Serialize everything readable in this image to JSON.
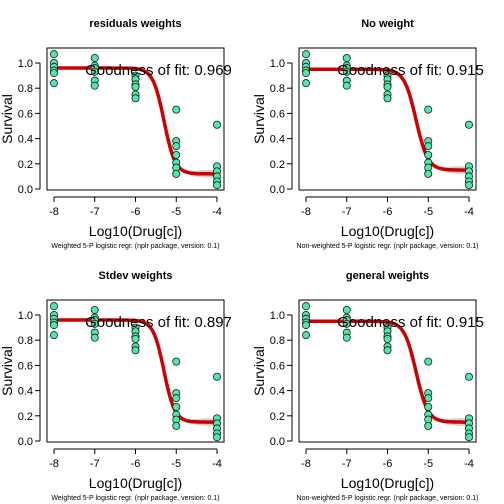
{
  "colors": {
    "point_fill": "#4ee8a8",
    "point_stroke": "#1a1a1a",
    "curve": "#cc0000",
    "band": "#cccccc"
  },
  "chart_data": [
    {
      "type": "scatter",
      "title": "residuals weights",
      "xlabel": "Log10(Drug[c])",
      "ylabel": "Survival",
      "xlim": [
        -8,
        -4
      ],
      "ylim": [
        0,
        1.05
      ],
      "xticks": [
        "-8",
        "-7",
        "-6",
        "-5",
        "-4"
      ],
      "yticks": [
        "0.0",
        "0.2",
        "0.4",
        "0.6",
        "0.8",
        "1.0"
      ],
      "annotation": "Goodness of fit: 0.969",
      "footnote": "Weighted 5-P logistic regr. (nplr package, version: 0.1)",
      "points": [
        [
          -8,
          1.07
        ],
        [
          -8,
          1.0
        ],
        [
          -8,
          0.97
        ],
        [
          -8,
          0.94
        ],
        [
          -8,
          0.92
        ],
        [
          -8,
          0.84
        ],
        [
          -7,
          1.04
        ],
        [
          -7,
          0.98
        ],
        [
          -7,
          0.96
        ],
        [
          -7,
          0.93
        ],
        [
          -7,
          0.86
        ],
        [
          -7,
          0.82
        ],
        [
          -6,
          0.9
        ],
        [
          -6,
          0.87
        ],
        [
          -6,
          0.83
        ],
        [
          -6,
          0.81
        ],
        [
          -6,
          0.75
        ],
        [
          -6,
          0.72
        ],
        [
          -5,
          0.63
        ],
        [
          -5,
          0.38
        ],
        [
          -5,
          0.34
        ],
        [
          -5,
          0.27
        ],
        [
          -5,
          0.21
        ],
        [
          -5,
          0.17
        ],
        [
          -5,
          0.12
        ],
        [
          -4,
          0.51
        ],
        [
          -4,
          0.18
        ],
        [
          -4,
          0.14
        ],
        [
          -4,
          0.1
        ],
        [
          -4,
          0.06
        ],
        [
          -4,
          0.03
        ]
      ],
      "fit": {
        "bottom": 0.12,
        "top": 0.96,
        "xmid": -5.3,
        "scal": 3.2,
        "s": 1.0
      }
    },
    {
      "type": "scatter",
      "title": "No weight",
      "xlabel": "Log10(Drug[c])",
      "ylabel": "Survival",
      "xlim": [
        -8,
        -4
      ],
      "ylim": [
        0,
        1.05
      ],
      "xticks": [
        "-8",
        "-7",
        "-6",
        "-5",
        "-4"
      ],
      "yticks": [
        "0.0",
        "0.2",
        "0.4",
        "0.6",
        "0.8",
        "1.0"
      ],
      "annotation": "Goodness of fit: 0.915",
      "footnote": "Non-weighted 5-P logistic regr. (nplr package, version: 0.1)",
      "points": [
        [
          -8,
          1.07
        ],
        [
          -8,
          1.0
        ],
        [
          -8,
          0.97
        ],
        [
          -8,
          0.94
        ],
        [
          -8,
          0.92
        ],
        [
          -8,
          0.84
        ],
        [
          -7,
          1.04
        ],
        [
          -7,
          0.98
        ],
        [
          -7,
          0.96
        ],
        [
          -7,
          0.93
        ],
        [
          -7,
          0.86
        ],
        [
          -7,
          0.82
        ],
        [
          -6,
          0.9
        ],
        [
          -6,
          0.87
        ],
        [
          -6,
          0.83
        ],
        [
          -6,
          0.81
        ],
        [
          -6,
          0.75
        ],
        [
          -6,
          0.72
        ],
        [
          -5,
          0.63
        ],
        [
          -5,
          0.38
        ],
        [
          -5,
          0.34
        ],
        [
          -5,
          0.27
        ],
        [
          -5,
          0.21
        ],
        [
          -5,
          0.17
        ],
        [
          -5,
          0.12
        ],
        [
          -4,
          0.51
        ],
        [
          -4,
          0.18
        ],
        [
          -4,
          0.14
        ],
        [
          -4,
          0.1
        ],
        [
          -4,
          0.06
        ],
        [
          -4,
          0.03
        ]
      ],
      "fit": {
        "bottom": 0.15,
        "top": 0.95,
        "xmid": -5.3,
        "scal": 3.0,
        "s": 1.0
      }
    },
    {
      "type": "scatter",
      "title": "Stdev weights",
      "xlabel": "Log10(Drug[c])",
      "ylabel": "Survival",
      "xlim": [
        -8,
        -4
      ],
      "ylim": [
        0,
        1.05
      ],
      "xticks": [
        "-8",
        "-7",
        "-6",
        "-5",
        "-4"
      ],
      "yticks": [
        "0.0",
        "0.2",
        "0.4",
        "0.6",
        "0.8",
        "1.0"
      ],
      "annotation": "Goodness of fit: 0.897",
      "footnote": "Weighted 5-P logistic regr. (nplr package, version: 0.1)",
      "points": [
        [
          -8,
          1.07
        ],
        [
          -8,
          1.0
        ],
        [
          -8,
          0.97
        ],
        [
          -8,
          0.94
        ],
        [
          -8,
          0.92
        ],
        [
          -8,
          0.84
        ],
        [
          -7,
          1.04
        ],
        [
          -7,
          0.98
        ],
        [
          -7,
          0.96
        ],
        [
          -7,
          0.93
        ],
        [
          -7,
          0.86
        ],
        [
          -7,
          0.82
        ],
        [
          -6,
          0.9
        ],
        [
          -6,
          0.87
        ],
        [
          -6,
          0.83
        ],
        [
          -6,
          0.81
        ],
        [
          -6,
          0.75
        ],
        [
          -6,
          0.72
        ],
        [
          -5,
          0.63
        ],
        [
          -5,
          0.38
        ],
        [
          -5,
          0.34
        ],
        [
          -5,
          0.27
        ],
        [
          -5,
          0.21
        ],
        [
          -5,
          0.17
        ],
        [
          -5,
          0.12
        ],
        [
          -4,
          0.51
        ],
        [
          -4,
          0.18
        ],
        [
          -4,
          0.14
        ],
        [
          -4,
          0.1
        ],
        [
          -4,
          0.06
        ],
        [
          -4,
          0.03
        ]
      ],
      "fit": {
        "bottom": 0.15,
        "top": 0.96,
        "xmid": -5.3,
        "scal": 3.3,
        "s": 1.0
      }
    },
    {
      "type": "scatter",
      "title": "general weights",
      "xlabel": "Log10(Drug[c])",
      "ylabel": "Survival",
      "xlim": [
        -8,
        -4
      ],
      "ylim": [
        0,
        1.05
      ],
      "xticks": [
        "-8",
        "-7",
        "-6",
        "-5",
        "-4"
      ],
      "yticks": [
        "0.0",
        "0.2",
        "0.4",
        "0.6",
        "0.8",
        "1.0"
      ],
      "annotation": "Goodness of fit: 0.915",
      "footnote": "Non-weighted 5-P logistic regr. (nplr package, version: 0.1)",
      "points": [
        [
          -8,
          1.07
        ],
        [
          -8,
          1.0
        ],
        [
          -8,
          0.97
        ],
        [
          -8,
          0.94
        ],
        [
          -8,
          0.92
        ],
        [
          -8,
          0.84
        ],
        [
          -7,
          1.04
        ],
        [
          -7,
          0.98
        ],
        [
          -7,
          0.96
        ],
        [
          -7,
          0.93
        ],
        [
          -7,
          0.86
        ],
        [
          -7,
          0.82
        ],
        [
          -6,
          0.9
        ],
        [
          -6,
          0.87
        ],
        [
          -6,
          0.83
        ],
        [
          -6,
          0.81
        ],
        [
          -6,
          0.75
        ],
        [
          -6,
          0.72
        ],
        [
          -5,
          0.63
        ],
        [
          -5,
          0.38
        ],
        [
          -5,
          0.34
        ],
        [
          -5,
          0.27
        ],
        [
          -5,
          0.21
        ],
        [
          -5,
          0.17
        ],
        [
          -5,
          0.12
        ],
        [
          -4,
          0.51
        ],
        [
          -4,
          0.18
        ],
        [
          -4,
          0.14
        ],
        [
          -4,
          0.1
        ],
        [
          -4,
          0.06
        ],
        [
          -4,
          0.03
        ]
      ],
      "fit": {
        "bottom": 0.15,
        "top": 0.95,
        "xmid": -5.3,
        "scal": 3.0,
        "s": 1.0
      }
    }
  ]
}
